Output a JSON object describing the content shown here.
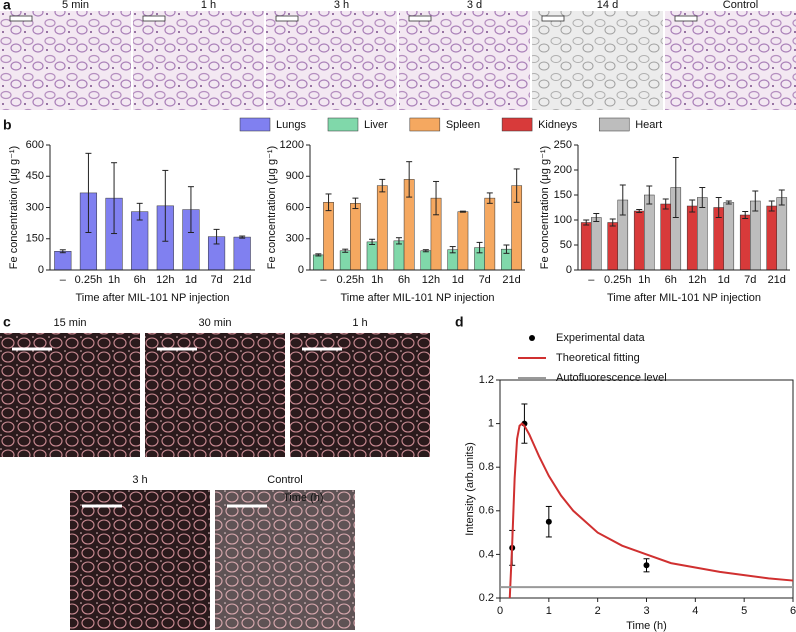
{
  "panel_a": {
    "label": "a",
    "images": [
      "5 min",
      "1 h",
      "3 h",
      "3 d",
      "14 d",
      "Control"
    ]
  },
  "panel_b": {
    "label": "b"
  },
  "panel_c": {
    "label": "c",
    "images": [
      "15 min",
      "30 min",
      "1 h",
      "3 h",
      "Control"
    ],
    "overlay_text": "Time (h)"
  },
  "panel_d": {
    "label": "d"
  },
  "chart_data": [
    {
      "type": "bar",
      "categories": [
        "–",
        "0.25h",
        "1h",
        "6h",
        "12h",
        "1d",
        "7d",
        "21d"
      ],
      "x_label": "Time after MIL-101 NP injection",
      "y_label": "Fe concentration (μg g⁻¹)",
      "ylim": [
        0,
        600
      ],
      "yticks": [
        0,
        150,
        300,
        450,
        600
      ],
      "series": [
        {
          "name": "Lungs",
          "color": "#8080f0",
          "values": [
            90,
            370,
            345,
            280,
            308,
            290,
            160,
            158
          ],
          "errors": [
            7,
            190,
            170,
            40,
            170,
            110,
            35,
            5
          ]
        }
      ]
    },
    {
      "type": "bar",
      "categories": [
        "–",
        "0.25h",
        "1h",
        "6h",
        "12h",
        "1d",
        "7d",
        "21d"
      ],
      "x_label": "Time after MIL-101 NP injection",
      "y_label": "Fe concentration (μg g⁻¹)",
      "ylim": [
        0,
        1200
      ],
      "yticks": [
        0,
        300,
        600,
        900,
        1200
      ],
      "series": [
        {
          "name": "Liver",
          "color": "#80d8aa",
          "values": [
            145,
            185,
            270,
            280,
            185,
            195,
            215,
            200
          ],
          "errors": [
            10,
            15,
            25,
            30,
            10,
            30,
            50,
            40
          ]
        },
        {
          "name": "Spleen",
          "color": "#f5a860",
          "values": [
            650,
            640,
            810,
            870,
            690,
            560,
            690,
            810
          ],
          "errors": [
            80,
            50,
            60,
            170,
            160,
            5,
            50,
            160
          ]
        }
      ]
    },
    {
      "type": "bar",
      "categories": [
        "–",
        "0.25h",
        "1h",
        "6h",
        "12h",
        "1d",
        "7d",
        "21d"
      ],
      "x_label": "Time after MIL-101 NP injection",
      "y_label": "Fe concentration (μg g⁻¹)",
      "ylim": [
        0,
        250
      ],
      "yticks": [
        0,
        50,
        100,
        150,
        200,
        250
      ],
      "series": [
        {
          "name": "Kidneys",
          "color": "#d83a3a",
          "values": [
            95,
            95,
            118,
            132,
            128,
            125,
            110,
            128
          ],
          "errors": [
            5,
            7,
            3,
            10,
            12,
            20,
            7,
            10
          ]
        },
        {
          "name": "Heart",
          "color": "#bdbdbd",
          "values": [
            105,
            140,
            150,
            165,
            145,
            135,
            138,
            145
          ],
          "errors": [
            8,
            30,
            18,
            60,
            20,
            3,
            20,
            15
          ]
        }
      ]
    },
    {
      "type": "line",
      "x_label": "Time (h)",
      "y_label": "Intensity (arb.units)",
      "xlim": [
        0,
        6
      ],
      "xticks": [
        0,
        1,
        2,
        3,
        4,
        5,
        6
      ],
      "ylim": [
        0.2,
        1.2
      ],
      "yticks": [
        0.2,
        0.4,
        0.6,
        0.8,
        1,
        1.2
      ],
      "series": [
        {
          "name": "Experimental data",
          "kind": "scatter",
          "color": "#000000",
          "x": [
            0.25,
            0.5,
            1,
            3
          ],
          "values": [
            0.43,
            1.0,
            0.55,
            0.35
          ],
          "errors": [
            0.08,
            0.09,
            0.07,
            0.03
          ]
        },
        {
          "name": "Theoretical fitting",
          "kind": "line",
          "color": "#d03030",
          "x": [
            0.2,
            0.25,
            0.3,
            0.35,
            0.4,
            0.45,
            0.5,
            0.6,
            0.7,
            0.8,
            1,
            1.25,
            1.5,
            2,
            2.5,
            3,
            3.5,
            4,
            4.5,
            5,
            5.5,
            6
          ],
          "values": [
            0.2,
            0.45,
            0.75,
            0.93,
            0.99,
            1.0,
            0.99,
            0.95,
            0.9,
            0.85,
            0.76,
            0.67,
            0.6,
            0.5,
            0.44,
            0.4,
            0.36,
            0.34,
            0.32,
            0.305,
            0.29,
            0.28
          ]
        },
        {
          "name": "Autofluorescence level",
          "kind": "line",
          "color": "#999999",
          "x": [
            0,
            6
          ],
          "values": [
            0.25,
            0.25
          ]
        }
      ]
    }
  ]
}
